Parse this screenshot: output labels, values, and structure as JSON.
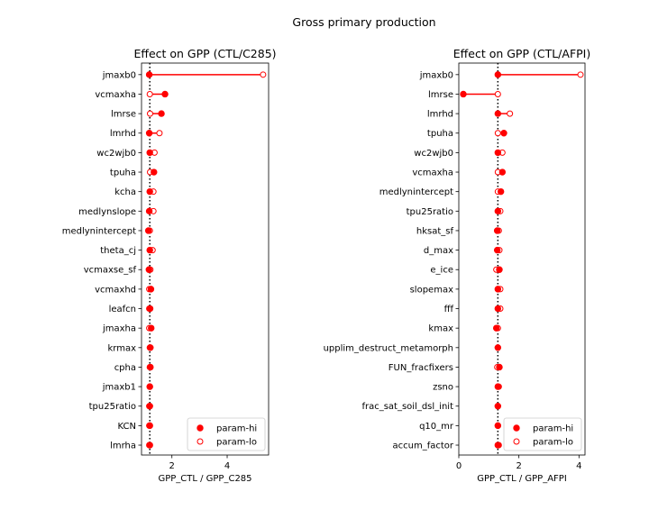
{
  "figure": {
    "title": "Gross primary production"
  },
  "legend": {
    "hi_label": "param-hi",
    "lo_label": "param-lo",
    "placement": "lower-right"
  },
  "colors": {
    "marker": "#ff0000",
    "reference_line": "#000000"
  },
  "chart_data": [
    {
      "type": "dumbbell",
      "title": "Effect on GPP (CTL/C285)",
      "xlabel": "GPP_CTL / GPP_C285",
      "xlim": [
        0.9,
        5.5
      ],
      "xticks": [
        2,
        4
      ],
      "reference_value": 1.2,
      "categories": [
        "jmaxb0",
        "vcmaxha",
        "lmrse",
        "lmrhd",
        "wc2wjb0",
        "tpuha",
        "kcha",
        "medlynslope",
        "medlynintercept",
        "theta_cj",
        "vcmaxse_sf",
        "vcmaxhd",
        "leafcn",
        "jmaxha",
        "krmax",
        "cpha",
        "jmaxb1",
        "tpu25ratio",
        "KCN",
        "lmrha"
      ],
      "series": [
        {
          "name": "param-hi",
          "values": [
            1.18,
            1.75,
            1.62,
            1.18,
            1.2,
            1.35,
            1.2,
            1.18,
            1.15,
            1.2,
            1.17,
            1.24,
            1.21,
            1.25,
            1.22,
            1.22,
            1.2,
            1.2,
            1.2,
            1.2
          ]
        },
        {
          "name": "param-lo",
          "values": [
            5.3,
            1.2,
            1.21,
            1.55,
            1.37,
            1.21,
            1.33,
            1.33,
            1.2,
            1.3,
            1.22,
            1.18,
            1.18,
            1.18,
            1.2,
            1.2,
            1.2,
            1.18,
            1.18,
            1.18
          ]
        }
      ],
      "legend": "lower-right"
    },
    {
      "type": "dumbbell",
      "title": "Effect on GPP (CTL/AFPI)",
      "xlabel": "GPP_CTL / GPP_AFPI",
      "xlim": [
        0,
        4.2
      ],
      "xticks": [
        0,
        2,
        4
      ],
      "reference_value": 1.3,
      "categories": [
        "jmaxb0",
        "lmrse",
        "lmrhd",
        "tpuha",
        "wc2wjb0",
        "vcmaxha",
        "medlynintercept",
        "tpu25ratio",
        "hksat_sf",
        "d_max",
        "e_ice",
        "slopemax",
        "fff",
        "kmax",
        "upplim_destruct_metamorph",
        "FUN_fracfixers",
        "zsno",
        "frac_sat_soil_dsl_init",
        "q10_mr",
        "accum_factor"
      ],
      "series": [
        {
          "name": "param-hi",
          "values": [
            1.3,
            0.15,
            1.3,
            1.5,
            1.3,
            1.45,
            1.4,
            1.3,
            1.28,
            1.28,
            1.35,
            1.3,
            1.3,
            1.25,
            1.3,
            1.35,
            1.3,
            1.3,
            1.3,
            1.3
          ]
        },
        {
          "name": "param-lo",
          "values": [
            4.05,
            1.3,
            1.7,
            1.3,
            1.45,
            1.3,
            1.3,
            1.38,
            1.33,
            1.35,
            1.25,
            1.38,
            1.38,
            1.3,
            1.3,
            1.28,
            1.33,
            1.3,
            1.3,
            1.33
          ]
        }
      ],
      "legend": "lower-right"
    }
  ]
}
